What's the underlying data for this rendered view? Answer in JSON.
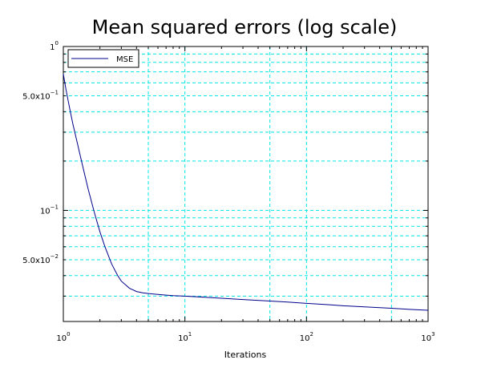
{
  "chart_data": {
    "type": "line",
    "title": "Mean squared errors (log scale)",
    "xlabel": "Iterations",
    "ylabel": "",
    "xscale": "log",
    "yscale": "log",
    "xlim": [
      1,
      1000
    ],
    "ylim": [
      0.021,
      1
    ],
    "grid": true,
    "grid_style": "dashed",
    "grid_color": "#00e5e5",
    "legend_position": "top-left",
    "x_ticks": [
      {
        "value": 1,
        "base": "10",
        "exp": "0"
      },
      {
        "value": 10,
        "base": "10",
        "exp": "1"
      },
      {
        "value": 100,
        "base": "10",
        "exp": "2"
      },
      {
        "value": 1000,
        "base": "10",
        "exp": "3"
      }
    ],
    "y_ticks": [
      {
        "value": 1,
        "base": "1",
        "exp": "0"
      },
      {
        "value": 0.5,
        "base": "5.0x10",
        "exp": "−1"
      },
      {
        "value": 0.1,
        "base": "10",
        "exp": "−1"
      },
      {
        "value": 0.05,
        "base": "5.0x10",
        "exp": "−2"
      }
    ],
    "series": [
      {
        "name": "MSE",
        "color": "#00008b",
        "x": [
          1,
          1.05,
          1.1,
          1.15,
          1.2,
          1.3,
          1.4,
          1.5,
          1.6,
          1.8,
          2.0,
          2.2,
          2.5,
          2.8,
          3.0,
          3.5,
          4.0,
          4.5,
          5.0,
          6.0,
          7.0,
          8.0,
          10,
          15,
          20,
          30,
          50,
          70,
          100,
          150,
          200,
          300,
          500,
          700,
          1000
        ],
        "y": [
          0.68,
          0.55,
          0.46,
          0.39,
          0.335,
          0.26,
          0.205,
          0.165,
          0.135,
          0.097,
          0.074,
          0.06,
          0.047,
          0.04,
          0.037,
          0.0335,
          0.032,
          0.0314,
          0.0311,
          0.0307,
          0.0304,
          0.0302,
          0.03,
          0.0295,
          0.0291,
          0.0286,
          0.028,
          0.0276,
          0.0271,
          0.0266,
          0.0262,
          0.0258,
          0.0253,
          0.0249,
          0.0246
        ]
      }
    ]
  }
}
